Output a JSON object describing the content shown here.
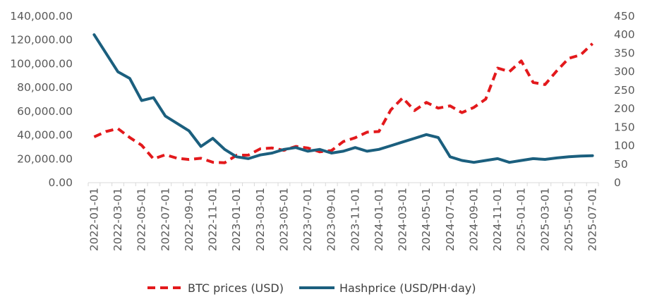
{
  "chart_data": {
    "type": "line",
    "title": "",
    "xlabel": "",
    "ylabel": "",
    "y2label": "",
    "grid": false,
    "legend_position": "bottom",
    "x": [
      "2022-01-01",
      "2022-02-01",
      "2022-03-01",
      "2022-04-01",
      "2022-05-01",
      "2022-06-01",
      "2022-07-01",
      "2022-08-01",
      "2022-09-01",
      "2022-10-01",
      "2022-11-01",
      "2022-12-01",
      "2023-01-01",
      "2023-02-01",
      "2023-03-01",
      "2023-04-01",
      "2023-05-01",
      "2023-06-01",
      "2023-07-01",
      "2023-08-01",
      "2023-09-01",
      "2023-10-01",
      "2023-11-01",
      "2023-12-01",
      "2024-01-01",
      "2024-02-01",
      "2024-03-01",
      "2024-04-01",
      "2024-05-01",
      "2024-06-01",
      "2024-07-01",
      "2024-08-01",
      "2024-09-01",
      "2024-10-01",
      "2024-11-01",
      "2024-12-01",
      "2025-01-01",
      "2025-02-01",
      "2025-03-01",
      "2025-04-01",
      "2025-05-01",
      "2025-06-01",
      "2025-07-01"
    ],
    "x_tick_labels": [
      "2022-01-01",
      "2022-03-01",
      "2022-05-01",
      "2022-07-01",
      "2022-09-01",
      "2022-11-01",
      "2023-01-01",
      "2023-03-01",
      "2023-05-01",
      "2023-07-01",
      "2023-09-01",
      "2023-11-01",
      "2024-01-01",
      "2024-03-01",
      "2024-05-01",
      "2024-07-01",
      "2024-09-01",
      "2024-11-01",
      "2025-01-01",
      "2025-03-01",
      "2025-05-01",
      "2025-07-01"
    ],
    "y_left": {
      "ylim": [
        0,
        140000
      ],
      "tick_labels": [
        "0.00",
        "20,000.00",
        "40,000.00",
        "60,000.00",
        "80,000.00",
        "100,000.00",
        "120,000.00",
        "140,000.00"
      ],
      "tick_values": [
        0,
        20000,
        40000,
        60000,
        80000,
        100000,
        120000,
        140000
      ]
    },
    "y_right": {
      "ylim": [
        0,
        450
      ],
      "tick_labels": [
        "0",
        "50",
        "100",
        "150",
        "200",
        "250",
        "300",
        "350",
        "400",
        "450"
      ],
      "tick_values": [
        0,
        50,
        100,
        150,
        200,
        250,
        300,
        350,
        400,
        450
      ]
    },
    "series": [
      {
        "name": "BTC prices (USD)",
        "axis": "left",
        "style": "dashed",
        "color": "#E3191C",
        "values": [
          38500,
          43000,
          45500,
          38000,
          31500,
          20000,
          23500,
          20500,
          19500,
          20500,
          17200,
          16800,
          23000,
          23200,
          28500,
          29200,
          27200,
          30500,
          29200,
          26000,
          27000,
          34600,
          37800,
          42500,
          43000,
          61200,
          71300,
          60700,
          67500,
          62700,
          64600,
          58900,
          63300,
          70300,
          96400,
          93400,
          102400,
          84300,
          82500,
          94200,
          104600,
          107500,
          117000
        ]
      },
      {
        "name": "Hashprice (USD/PH·day)",
        "axis": "right",
        "style": "solid",
        "color": "#1B5F7E",
        "values": [
          400,
          350,
          300,
          282,
          222,
          230,
          180,
          160,
          140,
          98,
          120,
          90,
          70,
          65,
          75,
          80,
          90,
          95,
          85,
          90,
          80,
          85,
          95,
          85,
          90,
          100,
          110,
          120,
          130,
          122,
          70,
          60,
          55,
          60,
          65,
          55,
          60,
          65,
          63,
          67,
          70,
          72,
          73
        ]
      }
    ]
  }
}
